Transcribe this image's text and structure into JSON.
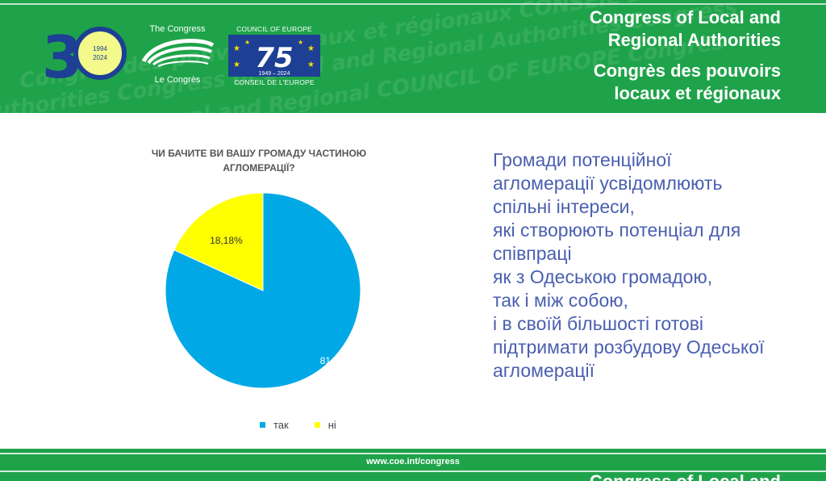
{
  "header": {
    "org_title_en": [
      "Congress of Local and",
      "Regional Authorities"
    ],
    "org_title_fr": [
      "Congrès des pouvoirs",
      "locaux et régionaux"
    ],
    "logo_30": {
      "big": "30",
      "years": [
        "1994",
        "2024"
      ]
    },
    "congress_logo": {
      "top": "The Congress",
      "bottom": "Le Congrès"
    },
    "coe_logo": {
      "top": "COUNCIL OF EUROPE",
      "number": "75",
      "years": "1949 – 2024",
      "bottom": "CONSEIL DE L'EUROPE"
    },
    "color": "#1fa34a"
  },
  "chart_data": {
    "type": "pie",
    "title": "ЧИ БАЧИТЕ ВИ ВАШУ ГРОМАДУ ЧАСТИНОЮ АГЛОМЕРАЦІЇ?",
    "title_lines": [
      "ЧИ БАЧИТЕ ВИ ВАШУ ГРОМАДУ ЧАСТИНОЮ",
      "АГЛОМЕРАЦІЇ?"
    ],
    "categories": [
      "так",
      "ні"
    ],
    "values": [
      81.82,
      18.18
    ],
    "labels": [
      "81,82%",
      "18,18%"
    ],
    "colors": [
      "#00a9e6",
      "#ffff00"
    ],
    "legend_position": "bottom"
  },
  "statement": {
    "lines": [
      "Громади потенційної",
      "агломерації усвідомлюють",
      "спільні інтереси,",
      "які створюють потенціал для",
      "співпраці",
      "як з Одеською громадою,",
      "так і між собою,",
      "і в своїй більшості готові",
      "підтримати розбудову Одеської",
      "агломерації"
    ],
    "color": "#4a5fb0"
  },
  "footer": {
    "url": "www.coe.int/congress",
    "cut_text": "Congress of Local and"
  }
}
